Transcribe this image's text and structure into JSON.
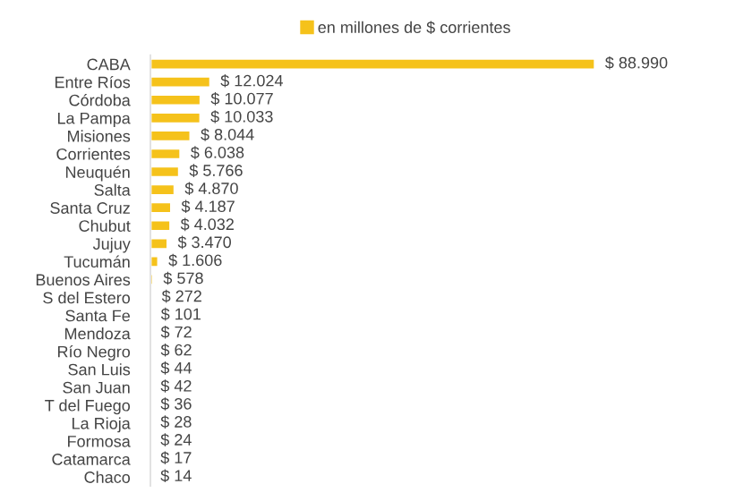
{
  "chart_data": {
    "type": "bar",
    "orientation": "horizontal",
    "legend": "top",
    "categories": [
      "CABA",
      "Entre Ríos",
      "Córdoba",
      "La Pampa",
      "Misiones",
      "Corrientes",
      "Neuquén",
      "Salta",
      "Santa Cruz",
      "Chubut",
      "Jujuy",
      "Tucumán",
      "Buenos Aires",
      "S del Estero",
      "Santa Fe",
      "Mendoza",
      "Río Negro",
      "San Luis",
      "San Juan",
      "T del Fuego",
      "La Rioja",
      "Formosa",
      "Catamarca",
      "Chaco"
    ],
    "series": [
      {
        "name": "en millones de $ corrientes",
        "color": "#f5c21b",
        "values": [
          88990,
          12024,
          10077,
          10033,
          8044,
          6038,
          5766,
          4870,
          4187,
          4032,
          3470,
          1606,
          578,
          272,
          101,
          72,
          62,
          44,
          42,
          36,
          28,
          24,
          17,
          14
        ],
        "value_labels": [
          "$ 88.990",
          "$ 12.024",
          "$ 10.077",
          "$ 10.033",
          "$ 8.044",
          "$ 6.038",
          "$ 5.766",
          "$ 4.870",
          "$ 4.187",
          "$ 4.032",
          "$ 3.470",
          "$ 1.606",
          "$ 578",
          "$ 272",
          "$ 101",
          "$ 72",
          "$ 62",
          "$ 44",
          "$ 42",
          "$ 36",
          "$ 28",
          "$ 24",
          "$ 17",
          "$ 14"
        ]
      }
    ]
  }
}
